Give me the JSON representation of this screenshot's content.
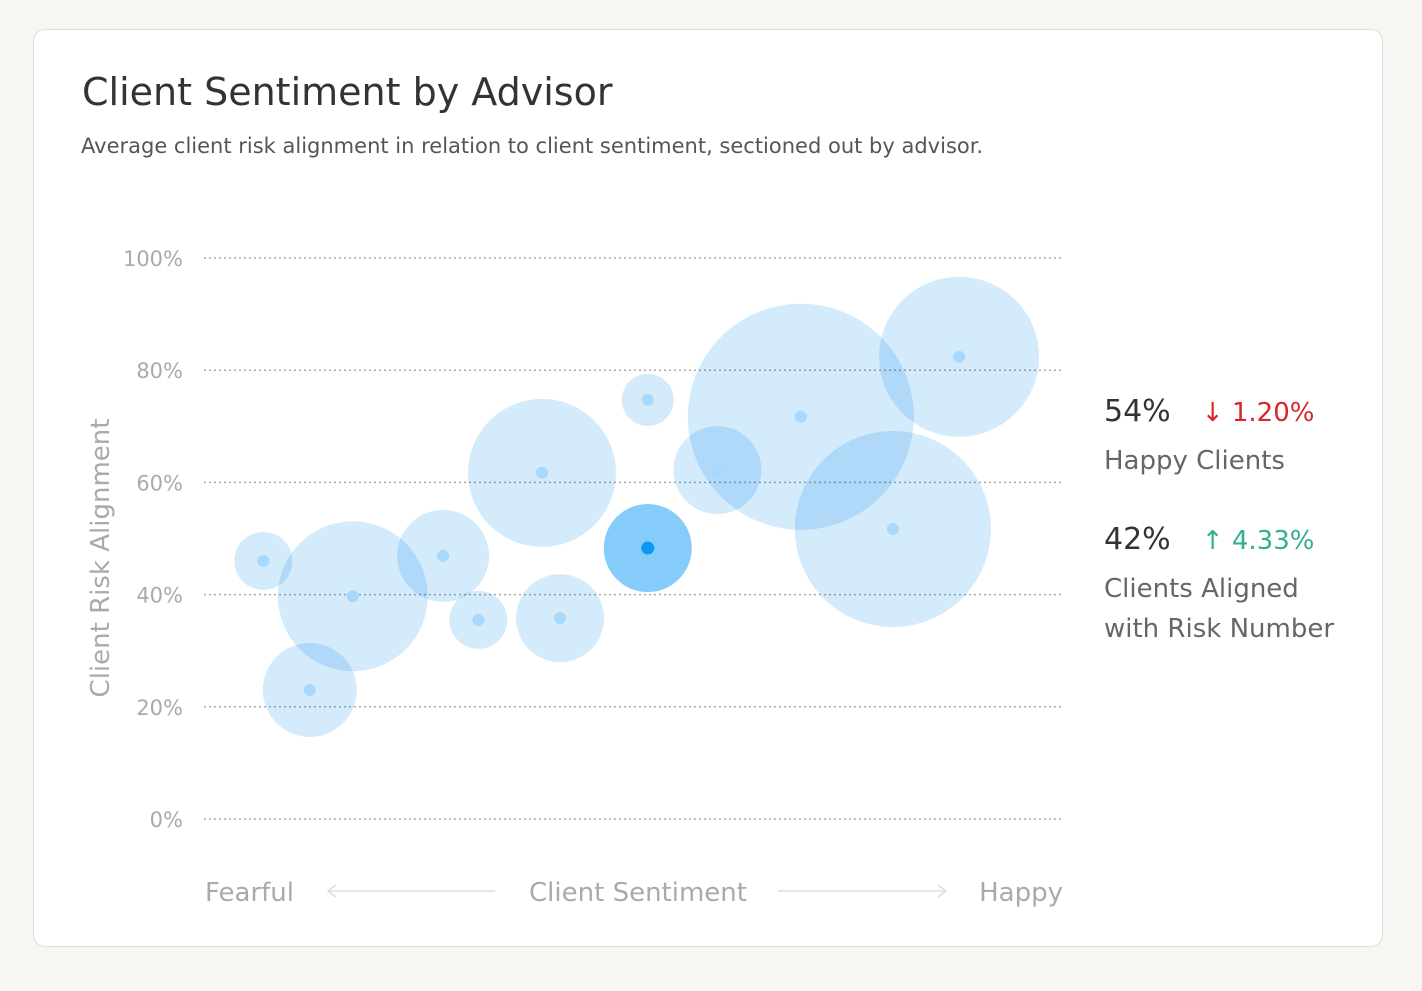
{
  "title": "Client Sentiment by Advisor",
  "subtitle": "Average client risk alignment in relation to client sentiment, sectioned out by advisor.",
  "stats": [
    {
      "value": "54%",
      "change": "1.20%",
      "direction": "down",
      "arrow": "↓",
      "color": "#d8262a",
      "label": "Happy Clients"
    },
    {
      "value": "42%",
      "change": "4.33%",
      "direction": "up",
      "arrow": "↑",
      "color": "#30b08e",
      "label_line1": "Clients Aligned",
      "label_line2": "with Risk Number"
    }
  ],
  "chart_data": {
    "type": "scatter",
    "subtype": "bubble",
    "ylabel": "Client Risk Alignment",
    "xlabel": "Client Sentiment",
    "x_left_label": "Fearful",
    "x_right_label": "Happy",
    "ylim": [
      0,
      100
    ],
    "xlim": [
      0,
      100
    ],
    "yticks": [
      "0%",
      "20%",
      "40%",
      "60%",
      "80%",
      "100%"
    ],
    "grid": "horizontal dotted",
    "colors": {
      "bubble": "#d2eafc",
      "bubble_dot": "#a8d8fb",
      "highlight": "#86ccfa",
      "highlight_dot": "#0b99f5"
    },
    "points": [
      {
        "x": 6.9,
        "y": 46,
        "size": 29
      },
      {
        "x": 12.3,
        "y": 23,
        "size": 47
      },
      {
        "x": 17.3,
        "y": 39.7,
        "size": 75
      },
      {
        "x": 27.8,
        "y": 46.9,
        "size": 46
      },
      {
        "x": 31.9,
        "y": 35.5,
        "size": 29
      },
      {
        "x": 39.3,
        "y": 61.7,
        "size": 74
      },
      {
        "x": 41.4,
        "y": 35.8,
        "size": 44
      },
      {
        "x": 51.6,
        "y": 48.3,
        "size": 44,
        "highlighted": true
      },
      {
        "x": 51.6,
        "y": 74.7,
        "size": 26
      },
      {
        "x": 59.7,
        "y": 62.2,
        "size": 44
      },
      {
        "x": 69.4,
        "y": 71.7,
        "size": 113
      },
      {
        "x": 80.1,
        "y": 51.7,
        "size": 98
      },
      {
        "x": 87.8,
        "y": 82.4,
        "size": 80
      }
    ]
  }
}
